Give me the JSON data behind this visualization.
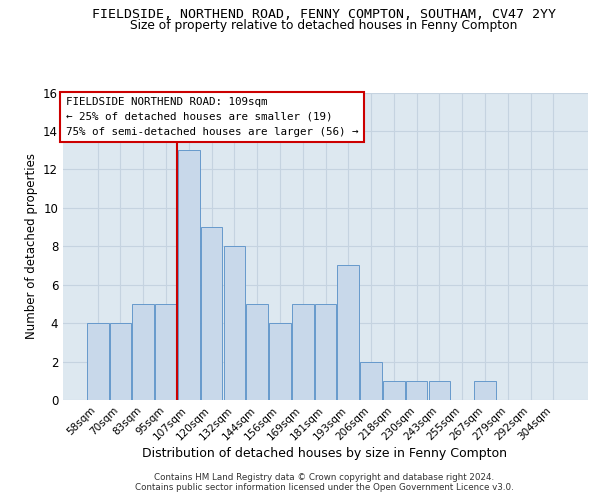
{
  "title_line1": "FIELDSIDE, NORTHEND ROAD, FENNY COMPTON, SOUTHAM, CV47 2YY",
  "title_line2": "Size of property relative to detached houses in Fenny Compton",
  "xlabel": "Distribution of detached houses by size in Fenny Compton",
  "ylabel": "Number of detached properties",
  "bar_labels": [
    "58sqm",
    "70sqm",
    "83sqm",
    "95sqm",
    "107sqm",
    "120sqm",
    "132sqm",
    "144sqm",
    "156sqm",
    "169sqm",
    "181sqm",
    "193sqm",
    "206sqm",
    "218sqm",
    "230sqm",
    "243sqm",
    "255sqm",
    "267sqm",
    "279sqm",
    "292sqm",
    "304sqm"
  ],
  "bar_values": [
    4,
    4,
    5,
    5,
    13,
    9,
    8,
    5,
    4,
    5,
    5,
    7,
    2,
    1,
    1,
    1,
    0,
    1,
    0,
    0,
    0
  ],
  "bar_color": "#c8d8ea",
  "bar_edge_color": "#6699cc",
  "ref_line_color": "#cc0000",
  "ref_line_index": 4,
  "annotation_title": "FIELDSIDE NORTHEND ROAD: 109sqm",
  "annotation_line1": "← 25% of detached houses are smaller (19)",
  "annotation_line2": "75% of semi-detached houses are larger (56) →",
  "annotation_box_edge_color": "#cc0000",
  "ylim": [
    0,
    16
  ],
  "yticks": [
    0,
    2,
    4,
    6,
    8,
    10,
    12,
    14,
    16
  ],
  "grid_color": "#c5d3e0",
  "bg_color": "#dde8f0",
  "footer_line1": "Contains HM Land Registry data © Crown copyright and database right 2024.",
  "footer_line2": "Contains public sector information licensed under the Open Government Licence v3.0."
}
